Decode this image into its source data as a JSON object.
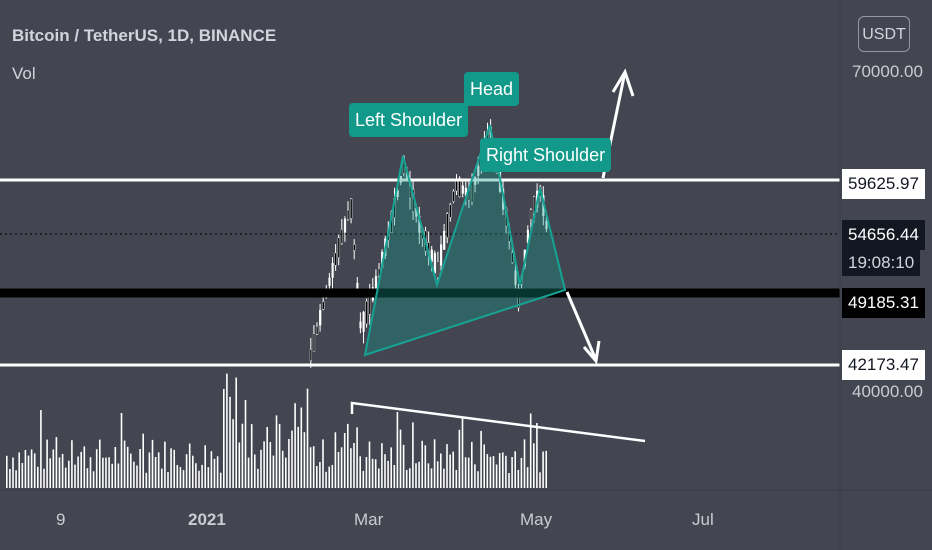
{
  "header": {
    "symbol_title": "Bitcoin / TetherUS, 1D, BINANCE",
    "volume_label": "Vol",
    "currency_button": "USDT"
  },
  "annotations": {
    "left_shoulder": "Left Shoulder",
    "head": "Head",
    "right_shoulder": "Right Shoulder"
  },
  "price_axis": {
    "ticks": [
      "70000.00",
      "40000.00"
    ],
    "tags": {
      "resistance": "59625.97",
      "last_price": "54656.44",
      "countdown": "19:08:10",
      "neckline": "49185.31",
      "support": "42173.47"
    }
  },
  "time_axis": {
    "ticks": [
      "9",
      "2021",
      "Mar",
      "May",
      "Jul"
    ]
  },
  "colors": {
    "background": "#434651",
    "text": "#d1d4dc",
    "candle": "#ffffff",
    "pattern_fill": "#12998a",
    "neckline": "#000000"
  },
  "chart_data": {
    "type": "candlestick",
    "title": "Bitcoin / TetherUS, 1D, BINANCE",
    "x_ticks": [
      "9",
      "2021",
      "Mar",
      "May",
      "Jul"
    ],
    "y_ticks": [
      70000,
      40000
    ],
    "levels": {
      "resistance": 59625.97,
      "last_price": 54656.44,
      "neckline": 49185.31,
      "support": 42173.47
    },
    "pattern": "head and shoulders",
    "pattern_points": [
      {
        "label": "Left Shoulder",
        "date": "2021-02-21",
        "price": 58000
      },
      {
        "label": "Head",
        "date": "2021-04-14",
        "price": 64800
      },
      {
        "label": "Right Shoulder",
        "date": "2021-05-03",
        "price": 58700
      }
    ],
    "volume_trend": "declining"
  }
}
